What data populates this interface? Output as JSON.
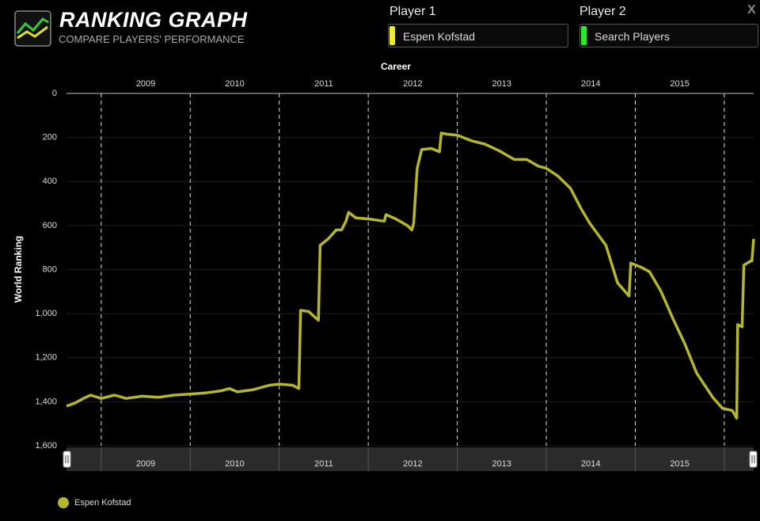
{
  "header": {
    "title": "RANKING GRAPH",
    "subtitle": "COMPARE PLAYERS' PERFORMANCE",
    "close": "X"
  },
  "controls": {
    "player1_label": "Player 1",
    "player1_value": "Espen Kofstad",
    "player2_label": "Player 2",
    "player2_placeholder": "Search Players"
  },
  "chart_data": {
    "type": "line",
    "xlabel": "Career",
    "ylabel": "World Ranking",
    "x": [
      2008.61,
      2008.71,
      2008.8,
      2008.88,
      2009.0,
      2009.15,
      2009.28,
      2009.46,
      2009.64,
      2009.82,
      2010.01,
      2010.17,
      2010.35,
      2010.44,
      2010.53,
      2010.71,
      2010.89,
      2011.0,
      2011.15,
      2011.22,
      2011.24,
      2011.33,
      2011.44,
      2011.46,
      2011.55,
      2011.64,
      2011.7,
      2011.75,
      2011.78,
      2011.86,
      2012.0,
      2012.18,
      2012.2,
      2012.31,
      2012.44,
      2012.49,
      2012.51,
      2012.55,
      2012.6,
      2012.71,
      2012.8,
      2012.82,
      2012.89,
      2013.0,
      2013.16,
      2013.31,
      2013.47,
      2013.64,
      2013.78,
      2013.91,
      2014.0,
      2014.13,
      2014.27,
      2014.4,
      2014.49,
      2014.67,
      2014.8,
      2014.93,
      2014.95,
      2015.07,
      2015.16,
      2015.29,
      2015.42,
      2015.56,
      2015.69,
      2015.87,
      2015.98,
      2016.09,
      2016.14,
      2016.15,
      2016.2,
      2016.22,
      2016.3,
      2016.31,
      2016.33
    ],
    "series": [
      {
        "name": "Espen Kofstad",
        "color": "#b5b52e",
        "values": [
          1420,
          1405,
          1385,
          1370,
          1385,
          1370,
          1385,
          1375,
          1380,
          1370,
          1365,
          1360,
          1350,
          1340,
          1355,
          1345,
          1325,
          1320,
          1325,
          1340,
          985,
          990,
          1030,
          690,
          660,
          620,
          620,
          580,
          540,
          565,
          570,
          580,
          550,
          570,
          600,
          620,
          590,
          340,
          255,
          250,
          265,
          180,
          185,
          190,
          215,
          230,
          260,
          300,
          300,
          330,
          340,
          375,
          430,
          530,
          590,
          690,
          860,
          920,
          770,
          790,
          810,
          900,
          1020,
          1140,
          1270,
          1380,
          1430,
          1440,
          1475,
          1050,
          1060,
          780,
          760,
          760,
          660
        ]
      }
    ],
    "xlim": [
      2008.61,
      2016.33
    ],
    "xticks": [
      {
        "value": 2009.5,
        "label": "2009"
      },
      {
        "value": 2010.5,
        "label": "2010"
      },
      {
        "value": 2011.5,
        "label": "2011"
      },
      {
        "value": 2012.5,
        "label": "2012"
      },
      {
        "value": 2013.5,
        "label": "2013"
      },
      {
        "value": 2014.5,
        "label": "2014"
      },
      {
        "value": 2015.5,
        "label": "2015"
      }
    ],
    "x_dividers": [
      2009,
      2010,
      2011,
      2012,
      2013,
      2014,
      2015,
      2016
    ],
    "ylim": [
      0,
      1600
    ],
    "y_inverted": true,
    "yticks": [
      0,
      200,
      400,
      600,
      800,
      {
        "value": 1000,
        "label": "1,000"
      },
      {
        "value": 1200,
        "label": "1,200"
      },
      {
        "value": 1400,
        "label": "1,400"
      },
      {
        "value": 1600,
        "label": "1,600"
      }
    ],
    "grid": true,
    "legend": "bottom-left"
  }
}
